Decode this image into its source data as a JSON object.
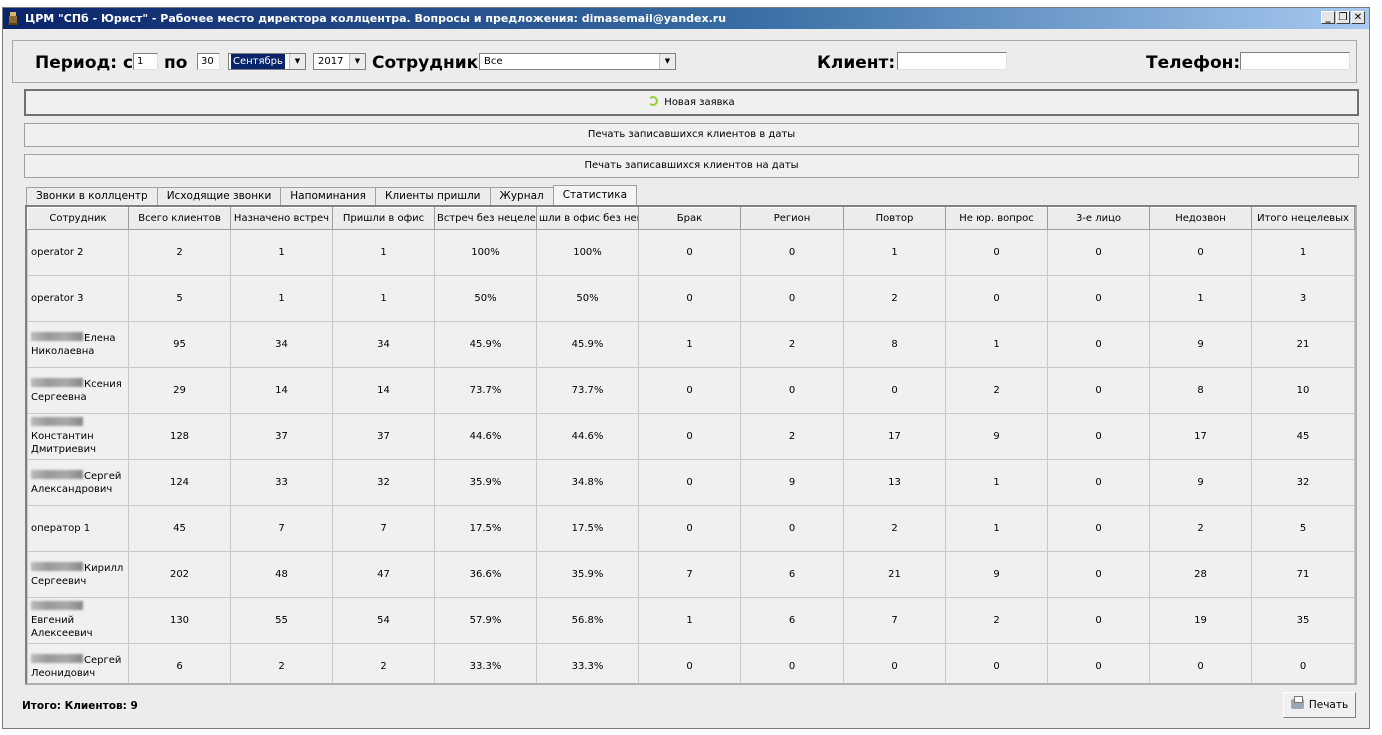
{
  "window": {
    "title": "ЦРМ \"СПб - Юрист\" - Рабочее место директора коллцентра. Вопросы и предложения: dimasemail@yandex.ru",
    "buttons": [
      "_",
      "❐",
      "✕"
    ]
  },
  "filters": {
    "period_label": "Период: с",
    "day_from": "1",
    "to_label": "по",
    "day_to": "30",
    "month": "Сентябрь",
    "year": "2017",
    "employee_label": "Сотрудник:",
    "employee": "Все",
    "client_label": "Клиент:",
    "client_value": "",
    "phone_label": "Телефон:",
    "phone_value": ""
  },
  "actions": {
    "new_request": "Новая заявка",
    "print_clients_in_dates": "Печать записавшихся клиентов в даты",
    "print_clients_for_dates": "Печать записавшихся клиентов на даты"
  },
  "tabs": [
    "Звонки в коллцентр",
    "Исходящие звонки",
    "Напоминания",
    "Клиенты пришли",
    "Журнал",
    "Статистика"
  ],
  "active_tab": "Статистика",
  "table": {
    "columns": [
      "Сотрудник",
      "Всего клиентов",
      "Назначено встреч",
      "Пришли в офис",
      "Встреч без нецеле",
      "шли в офис без нец",
      "Брак",
      "Регион",
      "Повтор",
      "Не юр. вопрос",
      "3-е лицо",
      "Недозвон",
      "Итого нецелевых"
    ],
    "rows": [
      {
        "name_line1": "operator 2",
        "name_line2": "",
        "blurred": false,
        "values": [
          "2",
          "1",
          "1",
          "100%",
          "100%",
          "0",
          "0",
          "1",
          "0",
          "0",
          "0",
          "1"
        ]
      },
      {
        "name_line1": "operator 3",
        "name_line2": "",
        "blurred": false,
        "values": [
          "5",
          "1",
          "1",
          "50%",
          "50%",
          "0",
          "0",
          "2",
          "0",
          "0",
          "1",
          "3"
        ]
      },
      {
        "name_line1": "Елена",
        "name_line2": "Николаевна",
        "blurred": true,
        "values": [
          "95",
          "34",
          "34",
          "45.9%",
          "45.9%",
          "1",
          "2",
          "8",
          "1",
          "0",
          "9",
          "21"
        ]
      },
      {
        "name_line1": "Ксения",
        "name_line2": "Сергеевна",
        "blurred": true,
        "values": [
          "29",
          "14",
          "14",
          "73.7%",
          "73.7%",
          "0",
          "0",
          "0",
          "2",
          "0",
          "8",
          "10"
        ]
      },
      {
        "name_line1": "",
        "name_line2": "Константин Дмитриевич",
        "blurred": true,
        "values": [
          "128",
          "37",
          "37",
          "44.6%",
          "44.6%",
          "0",
          "2",
          "17",
          "9",
          "0",
          "17",
          "45"
        ]
      },
      {
        "name_line1": "Сергей",
        "name_line2": "Александрович",
        "blurred": true,
        "values": [
          "124",
          "33",
          "32",
          "35.9%",
          "34.8%",
          "0",
          "9",
          "13",
          "1",
          "0",
          "9",
          "32"
        ]
      },
      {
        "name_line1": "оператор 1",
        "name_line2": "",
        "blurred": false,
        "values": [
          "45",
          "7",
          "7",
          "17.5%",
          "17.5%",
          "0",
          "0",
          "2",
          "1",
          "0",
          "2",
          "5"
        ]
      },
      {
        "name_line1": "Кирилл",
        "name_line2": "Сергеевич",
        "blurred": true,
        "values": [
          "202",
          "48",
          "47",
          "36.6%",
          "35.9%",
          "7",
          "6",
          "21",
          "9",
          "0",
          "28",
          "71"
        ]
      },
      {
        "name_line1": "Евгений",
        "name_line2": "Алексеевич",
        "blurred": true,
        "values": [
          "130",
          "55",
          "54",
          "57.9%",
          "56.8%",
          "1",
          "6",
          "7",
          "2",
          "0",
          "19",
          "35"
        ]
      },
      {
        "name_line1": "Сергей",
        "name_line2": "Леонидович",
        "blurred": true,
        "values": [
          "6",
          "2",
          "2",
          "33.3%",
          "33.3%",
          "0",
          "0",
          "0",
          "0",
          "0",
          "0",
          "0"
        ]
      }
    ]
  },
  "footer": {
    "total_label": "Итого: Клиентов: 9",
    "print_button": "Печать"
  }
}
